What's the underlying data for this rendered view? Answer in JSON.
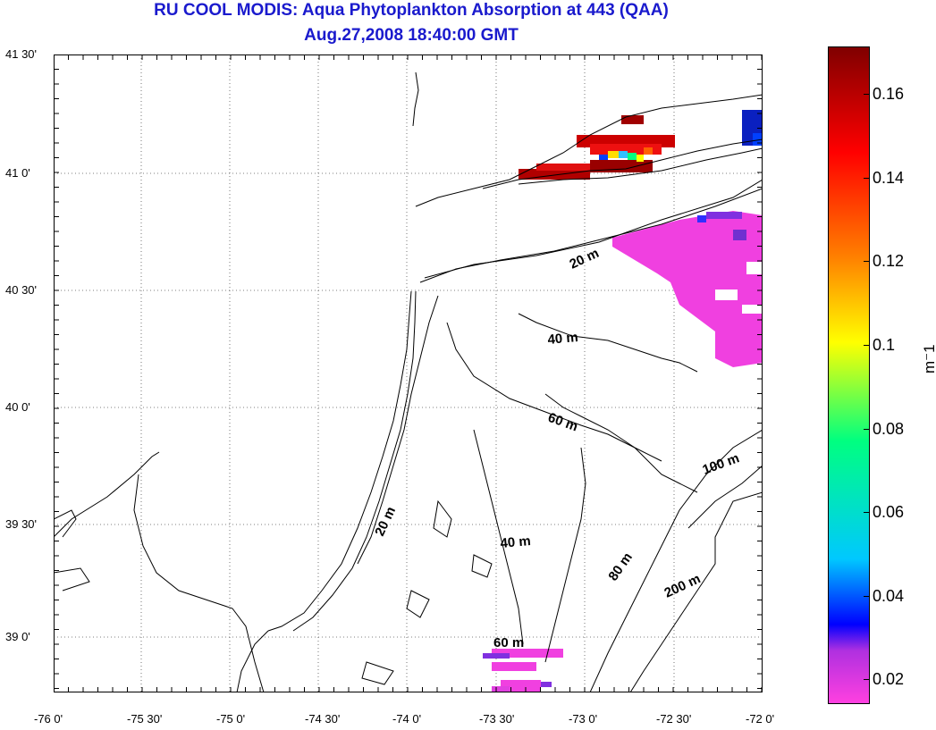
{
  "title": "RU COOL MODIS: Aqua Phytoplankton Absorption at 443 (QAA)",
  "subtitle": "Aug.27,2008 18:40:00 GMT",
  "x_ticks": [
    "-76 0'",
    "-75 30'",
    "-75 0'",
    "-74 30'",
    "-74 0'",
    "-73 30'",
    "-73 0'",
    "-72 30'",
    "-72 0'"
  ],
  "y_ticks": [
    "41 30'",
    "41 0'",
    "40 30'",
    "40 0'",
    "39 30'",
    "39 0'"
  ],
  "colorbar": {
    "unit": "m⁻1",
    "ticks": [
      "0.16",
      "0.14",
      "0.12",
      "0.1",
      "0.08",
      "0.06",
      "0.04",
      "0.02"
    ],
    "colors": [
      "#ff40e0",
      "#b030e0",
      "#0000ff",
      "#00c8ff",
      "#00ff80",
      "#ffff00",
      "#ff8000",
      "#ff0000",
      "#800000"
    ]
  },
  "contour_labels": [
    {
      "text": "20 m"
    },
    {
      "text": "40 m"
    },
    {
      "text": "60 m"
    },
    {
      "text": "20 m"
    },
    {
      "text": "40 m"
    },
    {
      "text": "100 m"
    },
    {
      "text": "80 m"
    },
    {
      "text": "200 m"
    },
    {
      "text": "60 m"
    }
  ],
  "map": {
    "land_color": "#ffffff",
    "coast_color": "#000000",
    "grid_color": "#555555"
  }
}
